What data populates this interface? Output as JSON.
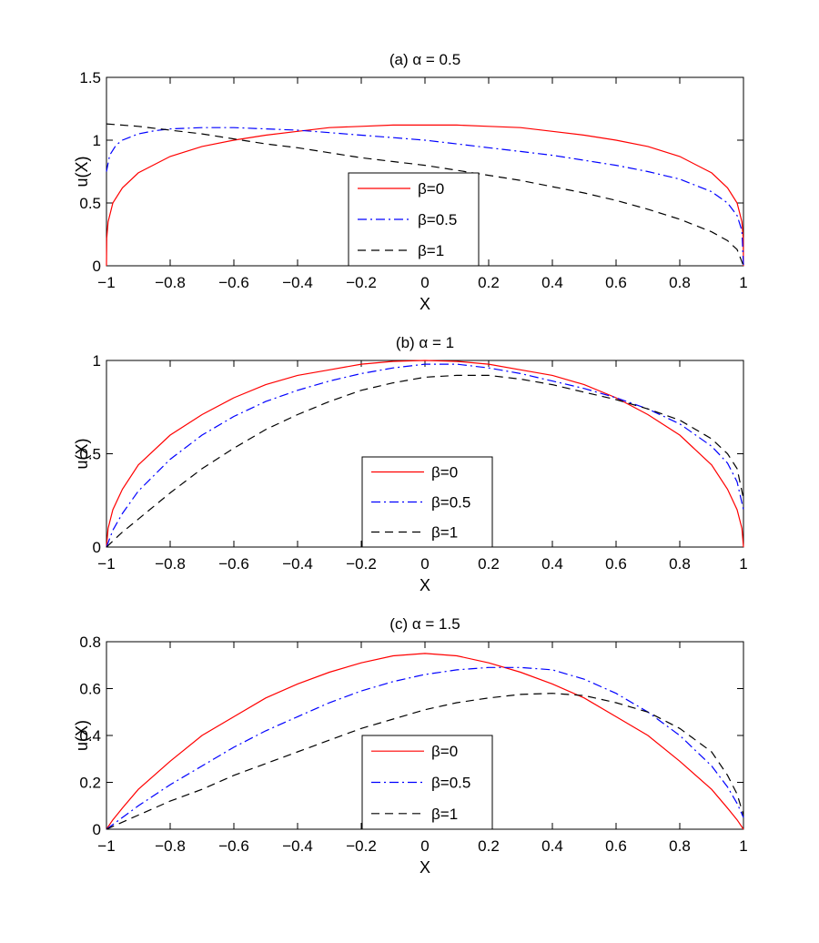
{
  "chart_data": [
    {
      "type": "line",
      "title": "(a) α = 0.5",
      "xlabel": "X",
      "ylabel": "u(X)",
      "xlim": [
        -1,
        1
      ],
      "ylim": [
        0,
        1.5
      ],
      "xticks": [
        "−1",
        "−0.8",
        "−0.6",
        "−0.4",
        "−0.2",
        "0",
        "0.2",
        "0.4",
        "0.6",
        "0.8",
        "1"
      ],
      "yticks": [
        "0",
        "0.5",
        "1",
        "1.5"
      ],
      "legend_position": "bottom-center",
      "series": [
        {
          "name": "β=0",
          "color": "#ff0000",
          "style": "solid",
          "x": [
            -1,
            -0.999,
            -0.995,
            -0.98,
            -0.95,
            -0.9,
            -0.8,
            -0.7,
            -0.6,
            -0.5,
            -0.4,
            -0.3,
            -0.2,
            -0.1,
            0,
            0.1,
            0.2,
            0.3,
            0.4,
            0.5,
            0.6,
            0.7,
            0.8,
            0.9,
            0.95,
            0.98,
            0.995,
            0.999,
            1
          ],
          "y": [
            0,
            0.22,
            0.35,
            0.5,
            0.62,
            0.74,
            0.87,
            0.95,
            1.0,
            1.04,
            1.07,
            1.1,
            1.11,
            1.12,
            1.12,
            1.12,
            1.11,
            1.1,
            1.07,
            1.04,
            1.0,
            0.95,
            0.87,
            0.74,
            0.62,
            0.5,
            0.35,
            0.22,
            0
          ]
        },
        {
          "name": "β=0.5",
          "color": "#0000ff",
          "style": "dashdot",
          "x": [
            -1,
            -0.99,
            -0.97,
            -0.95,
            -0.9,
            -0.85,
            -0.8,
            -0.7,
            -0.6,
            -0.5,
            -0.4,
            -0.3,
            -0.2,
            -0.1,
            0,
            0.1,
            0.2,
            0.3,
            0.4,
            0.5,
            0.6,
            0.7,
            0.8,
            0.9,
            0.95,
            0.98,
            0.995,
            1
          ],
          "y": [
            0.75,
            0.88,
            0.96,
            1.0,
            1.05,
            1.075,
            1.09,
            1.1,
            1.1,
            1.09,
            1.08,
            1.06,
            1.04,
            1.02,
            1.0,
            0.97,
            0.94,
            0.91,
            0.88,
            0.84,
            0.8,
            0.75,
            0.69,
            0.59,
            0.5,
            0.4,
            0.28,
            0
          ]
        },
        {
          "name": "β=1",
          "color": "#000000",
          "style": "dashed",
          "x": [
            -1,
            -0.9,
            -0.8,
            -0.7,
            -0.6,
            -0.5,
            -0.4,
            -0.3,
            -0.2,
            -0.1,
            0,
            0.1,
            0.2,
            0.3,
            0.4,
            0.5,
            0.6,
            0.7,
            0.8,
            0.9,
            0.95,
            0.98,
            1
          ],
          "y": [
            1.13,
            1.11,
            1.08,
            1.05,
            1.01,
            0.97,
            0.94,
            0.9,
            0.86,
            0.83,
            0.8,
            0.76,
            0.72,
            0.68,
            0.63,
            0.58,
            0.52,
            0.45,
            0.37,
            0.27,
            0.2,
            0.13,
            0
          ]
        }
      ]
    },
    {
      "type": "line",
      "title": "(b) α = 1",
      "xlabel": "X",
      "ylabel": "u(X)",
      "xlim": [
        -1,
        1
      ],
      "ylim": [
        0,
        1
      ],
      "xticks": [
        "−1",
        "−0.8",
        "−0.6",
        "−0.4",
        "−0.2",
        "0",
        "0.2",
        "0.4",
        "0.6",
        "0.8",
        "1"
      ],
      "yticks": [
        "0",
        "0.5",
        "1"
      ],
      "legend_position": "bottom-center",
      "series": [
        {
          "name": "β=0",
          "color": "#ff0000",
          "style": "solid",
          "x": [
            -1,
            -0.995,
            -0.98,
            -0.95,
            -0.9,
            -0.8,
            -0.7,
            -0.6,
            -0.5,
            -0.4,
            -0.3,
            -0.2,
            -0.1,
            0,
            0.1,
            0.2,
            0.3,
            0.4,
            0.5,
            0.6,
            0.7,
            0.8,
            0.9,
            0.95,
            0.98,
            0.995,
            1
          ],
          "y": [
            0,
            0.1,
            0.2,
            0.31,
            0.44,
            0.6,
            0.71,
            0.8,
            0.87,
            0.92,
            0.95,
            0.98,
            0.995,
            1.0,
            0.995,
            0.98,
            0.95,
            0.92,
            0.87,
            0.8,
            0.71,
            0.6,
            0.44,
            0.31,
            0.2,
            0.1,
            0
          ]
        },
        {
          "name": "β=0.5",
          "color": "#0000ff",
          "style": "dashdot",
          "x": [
            -1,
            -0.98,
            -0.95,
            -0.9,
            -0.8,
            -0.7,
            -0.6,
            -0.5,
            -0.4,
            -0.3,
            -0.2,
            -0.1,
            0,
            0.1,
            0.2,
            0.3,
            0.4,
            0.5,
            0.6,
            0.7,
            0.8,
            0.9,
            0.95,
            0.98,
            1
          ],
          "y": [
            0,
            0.09,
            0.18,
            0.3,
            0.47,
            0.6,
            0.7,
            0.78,
            0.84,
            0.89,
            0.93,
            0.96,
            0.98,
            0.98,
            0.96,
            0.93,
            0.89,
            0.85,
            0.8,
            0.74,
            0.66,
            0.54,
            0.45,
            0.35,
            0.2
          ]
        },
        {
          "name": "β=1",
          "color": "#000000",
          "style": "dashed",
          "x": [
            -1,
            -0.95,
            -0.9,
            -0.8,
            -0.7,
            -0.6,
            -0.5,
            -0.4,
            -0.3,
            -0.2,
            -0.1,
            0,
            0.1,
            0.2,
            0.3,
            0.4,
            0.5,
            0.6,
            0.7,
            0.8,
            0.9,
            0.95,
            0.98,
            1
          ],
          "y": [
            0,
            0.08,
            0.15,
            0.29,
            0.42,
            0.53,
            0.63,
            0.71,
            0.78,
            0.84,
            0.88,
            0.91,
            0.92,
            0.92,
            0.9,
            0.87,
            0.83,
            0.79,
            0.74,
            0.68,
            0.58,
            0.5,
            0.42,
            0.26
          ]
        }
      ]
    },
    {
      "type": "line",
      "title": "(c) α = 1.5",
      "xlabel": "X",
      "ylabel": "u(X)",
      "xlim": [
        -1,
        1
      ],
      "ylim": [
        0,
        0.8
      ],
      "xticks": [
        "−1",
        "−0.8",
        "−0.6",
        "−0.4",
        "−0.2",
        "0",
        "0.2",
        "0.4",
        "0.6",
        "0.8",
        "1"
      ],
      "yticks": [
        "0",
        "0.2",
        "0.4",
        "0.6",
        "0.8"
      ],
      "legend_position": "bottom-center",
      "series": [
        {
          "name": "β=0",
          "color": "#ff0000",
          "style": "solid",
          "x": [
            -1,
            -0.98,
            -0.95,
            -0.9,
            -0.8,
            -0.7,
            -0.6,
            -0.5,
            -0.4,
            -0.3,
            -0.2,
            -0.1,
            0,
            0.1,
            0.2,
            0.3,
            0.4,
            0.5,
            0.6,
            0.7,
            0.8,
            0.9,
            0.95,
            0.98,
            1
          ],
          "y": [
            0,
            0.04,
            0.09,
            0.17,
            0.29,
            0.4,
            0.48,
            0.56,
            0.62,
            0.67,
            0.71,
            0.74,
            0.75,
            0.74,
            0.71,
            0.67,
            0.62,
            0.56,
            0.48,
            0.4,
            0.29,
            0.17,
            0.09,
            0.04,
            0
          ]
        },
        {
          "name": "β=0.5",
          "color": "#0000ff",
          "style": "dashdot",
          "x": [
            -1,
            -0.9,
            -0.8,
            -0.7,
            -0.6,
            -0.5,
            -0.4,
            -0.3,
            -0.2,
            -0.1,
            0,
            0.1,
            0.2,
            0.3,
            0.4,
            0.5,
            0.6,
            0.7,
            0.8,
            0.9,
            0.95,
            0.98,
            1
          ],
          "y": [
            0,
            0.1,
            0.19,
            0.27,
            0.35,
            0.42,
            0.48,
            0.54,
            0.59,
            0.63,
            0.66,
            0.68,
            0.69,
            0.69,
            0.68,
            0.64,
            0.58,
            0.5,
            0.4,
            0.27,
            0.18,
            0.11,
            0.05
          ]
        },
        {
          "name": "β=1",
          "color": "#000000",
          "style": "dashed",
          "x": [
            -1,
            -0.9,
            -0.8,
            -0.7,
            -0.6,
            -0.5,
            -0.4,
            -0.3,
            -0.2,
            -0.1,
            0,
            0.1,
            0.2,
            0.3,
            0.4,
            0.5,
            0.6,
            0.7,
            0.8,
            0.9,
            0.95,
            0.98,
            1
          ],
          "y": [
            0,
            0.06,
            0.12,
            0.17,
            0.23,
            0.28,
            0.33,
            0.38,
            0.43,
            0.47,
            0.51,
            0.54,
            0.56,
            0.575,
            0.58,
            0.57,
            0.54,
            0.5,
            0.43,
            0.33,
            0.23,
            0.15,
            0.06
          ]
        }
      ]
    }
  ]
}
